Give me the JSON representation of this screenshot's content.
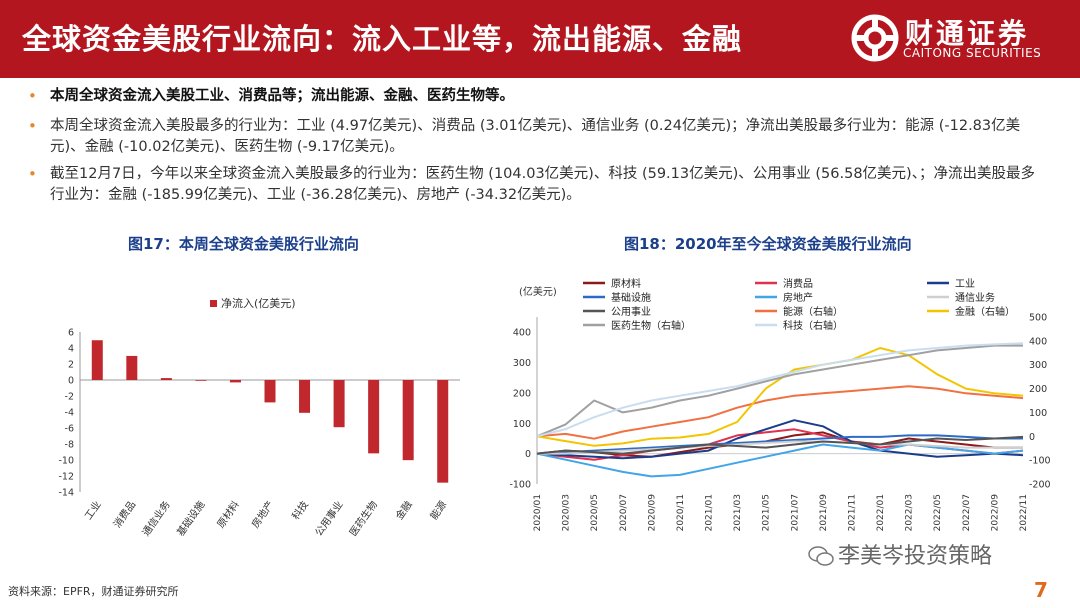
{
  "header": {
    "title": "全球资金美股行业流向：流入工业等，流出能源、金融",
    "logo_cn": "财通证券",
    "logo_en": "CAITONG SECURITIES",
    "bg_color": "#b3161e"
  },
  "bullets": [
    "本周全球资金流入美股工业、消费品等；流出能源、金融、医药生物等。",
    "本周全球资金流入美股最多的行业为：工业 (4.97亿美元)、消费品 (3.01亿美元)、通信业务 (0.24亿美元)；净流出美股最多行业为：能源 (-12.83亿美元)、金融 (-10.02亿美元)、医药生物 (-9.17亿美元)。",
    "截至12月7日，今年以来全球资金流入美股最多的行业为：医药生物 (104.03亿美元)、科技 (59.13亿美元)、公用事业 (56.58亿美元)、；净流出美股最多行业为：金融 (-185.99亿美元)、工业 (-36.28亿美元)、房地产 (-34.32亿美元)。"
  ],
  "chart17_title": "图17：本周全球资金美股行业流向",
  "chart18_title": "图18：2020年至今全球资金美股行业流向",
  "chart_data": [
    {
      "type": "bar",
      "title": "图17：本周全球资金美股行业流向",
      "legend": "净流入(亿美元)",
      "categories": [
        "工业",
        "消费品",
        "通信业务",
        "基础设施",
        "原材料",
        "房地产",
        "科技",
        "公用事业",
        "医药生物",
        "金融",
        "能源"
      ],
      "values": [
        4.97,
        3.01,
        0.24,
        -0.1,
        -0.3,
        -2.8,
        -4.1,
        -5.9,
        -9.17,
        -10.02,
        -12.83
      ],
      "ylim": [
        -14,
        6
      ],
      "yticks": [
        6,
        4,
        2,
        0,
        -2,
        -4,
        -6,
        -8,
        -10,
        -12,
        -14
      ],
      "color": "#c0282d"
    },
    {
      "type": "line",
      "title": "图18：2020年至今全球资金美股行业流向",
      "ylabel": "(亿美元)",
      "ylim": [
        -100,
        450
      ],
      "yticks": [
        400,
        300,
        200,
        100,
        0,
        -100
      ],
      "y2lim": [
        -200,
        500
      ],
      "y2ticks": [
        500,
        400,
        300,
        200,
        100,
        0,
        -100,
        -200
      ],
      "x": [
        "2020/01",
        "2020/03",
        "2020/05",
        "2020/07",
        "2020/09",
        "2020/11",
        "2021/01",
        "2021/03",
        "2021/05",
        "2021/07",
        "2021/09",
        "2021/11",
        "2022/01",
        "2022/03",
        "2022/05",
        "2022/07",
        "2022/09",
        "2022/11"
      ],
      "series": [
        {
          "name": "原材料",
          "color": "#8b1a1a",
          "axis": "left",
          "values": [
            0,
            10,
            5,
            -5,
            -10,
            5,
            20,
            30,
            40,
            60,
            70,
            40,
            30,
            50,
            40,
            30,
            20,
            20
          ]
        },
        {
          "name": "消费品",
          "color": "#e0314f",
          "axis": "left",
          "values": [
            0,
            -10,
            -20,
            -5,
            10,
            20,
            30,
            60,
            70,
            80,
            60,
            40,
            20,
            30,
            20,
            10,
            0,
            10
          ]
        },
        {
          "name": "工业",
          "color": "#1a3c8a",
          "axis": "left",
          "values": [
            0,
            -5,
            -10,
            -15,
            -10,
            0,
            10,
            50,
            80,
            110,
            90,
            40,
            10,
            0,
            -10,
            -5,
            0,
            -5
          ]
        },
        {
          "name": "基础设施",
          "color": "#2e6bc7",
          "axis": "left",
          "values": [
            0,
            5,
            10,
            15,
            20,
            25,
            30,
            35,
            40,
            45,
            50,
            55,
            55,
            60,
            60,
            55,
            50,
            50
          ]
        },
        {
          "name": "房地产",
          "color": "#42a5e8",
          "axis": "left",
          "values": [
            0,
            -20,
            -40,
            -60,
            -75,
            -70,
            -50,
            -30,
            -10,
            10,
            30,
            20,
            10,
            30,
            20,
            10,
            0,
            10
          ]
        },
        {
          "name": "通信业务",
          "color": "#cfcfcf",
          "axis": "left",
          "values": [
            0,
            0,
            5,
            10,
            15,
            20,
            25,
            30,
            35,
            40,
            40,
            35,
            30,
            30,
            25,
            20,
            20,
            20
          ]
        },
        {
          "name": "公用事业",
          "color": "#555555",
          "axis": "left",
          "values": [
            0,
            10,
            5,
            0,
            10,
            20,
            30,
            25,
            20,
            30,
            40,
            35,
            30,
            40,
            50,
            45,
            50,
            55
          ]
        },
        {
          "name": "能源（右轴）",
          "color": "#f07040",
          "axis": "right",
          "values": [
            0,
            10,
            -10,
            20,
            40,
            60,
            80,
            120,
            150,
            170,
            180,
            190,
            200,
            210,
            200,
            180,
            170,
            160
          ]
        },
        {
          "name": "金融（右轴）",
          "color": "#f2c500",
          "axis": "right",
          "values": [
            0,
            -20,
            -40,
            -30,
            -10,
            -5,
            10,
            60,
            200,
            280,
            300,
            320,
            370,
            340,
            260,
            200,
            180,
            170
          ]
        },
        {
          "name": "医药生物（右轴）",
          "color": "#a0a0a0",
          "axis": "right",
          "values": [
            0,
            50,
            150,
            100,
            120,
            150,
            170,
            200,
            230,
            260,
            280,
            300,
            320,
            340,
            360,
            370,
            380,
            380
          ]
        },
        {
          "name": "科技（右轴）",
          "color": "#c9ddf0",
          "axis": "right",
          "values": [
            0,
            30,
            80,
            120,
            150,
            170,
            190,
            210,
            240,
            270,
            300,
            320,
            340,
            360,
            370,
            380,
            385,
            390
          ]
        }
      ]
    }
  ],
  "source": "资料来源：EPFR，财通证券研究所",
  "watermark": "李美岑投资策略",
  "page_number": "7"
}
